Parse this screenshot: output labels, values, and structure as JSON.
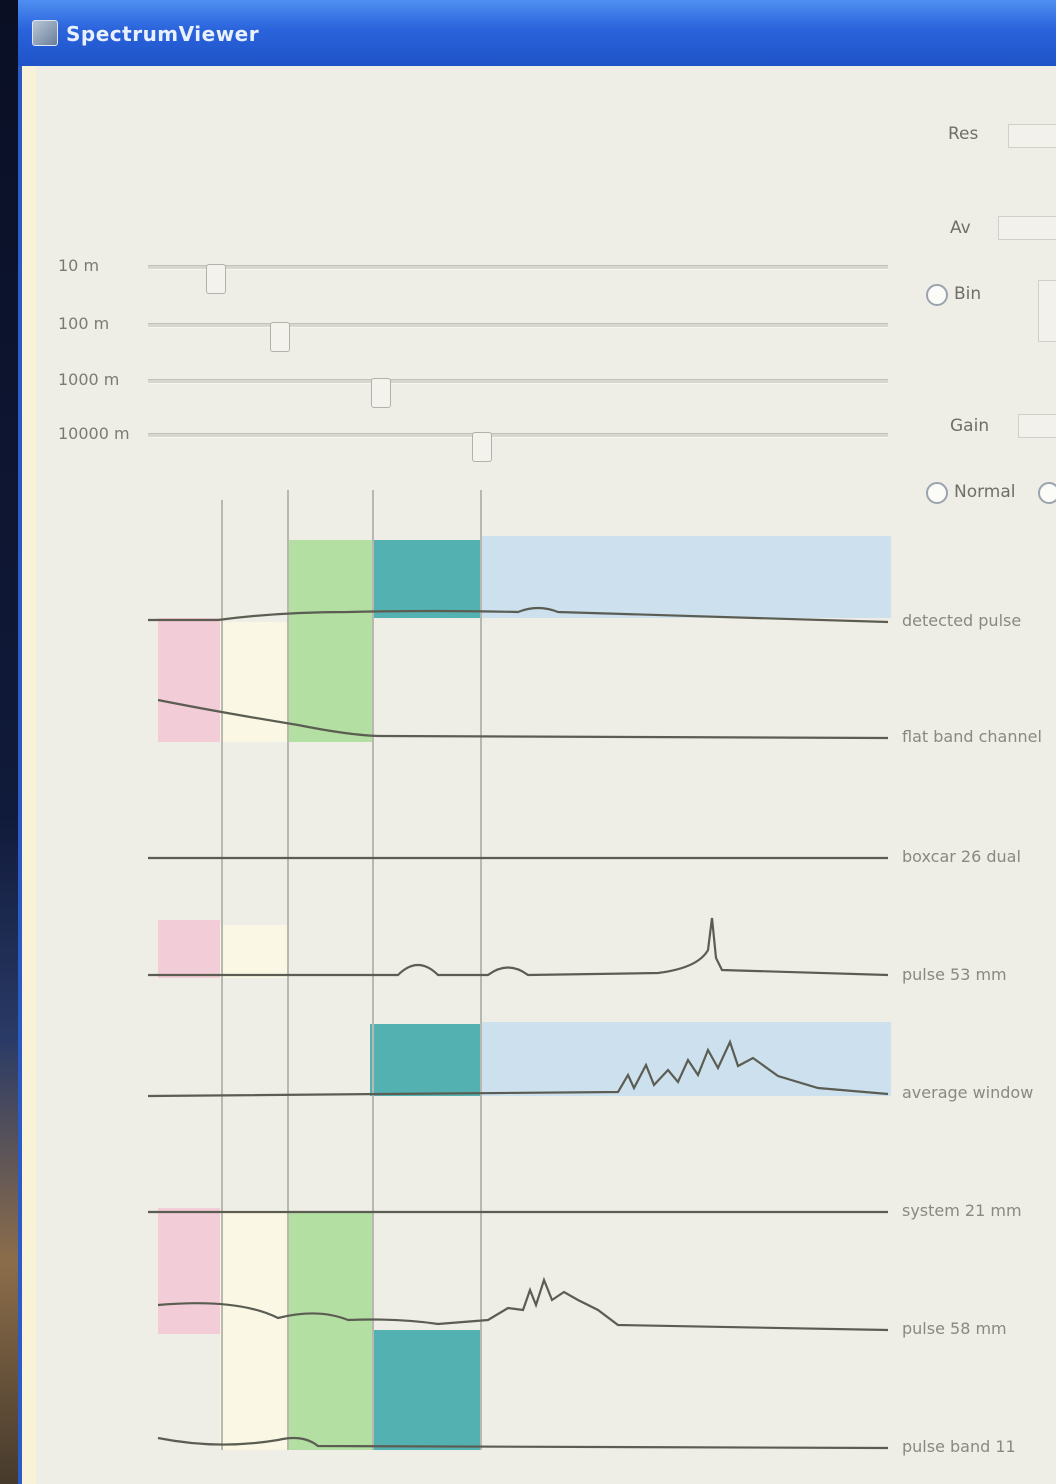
{
  "window": {
    "title": "SpectrumViewer"
  },
  "sliders": [
    {
      "label": "10 m",
      "value": 0.08
    },
    {
      "label": "100 m",
      "value": 0.17
    },
    {
      "label": "1000 m",
      "value": 0.31
    },
    {
      "label": "10000 m",
      "value": 0.45
    }
  ],
  "panel": {
    "field1_label": "Res",
    "field2_label": "Av",
    "radio1_label": "Bin",
    "field3_label": "Gain",
    "radio2_label": "Normal"
  },
  "traces": [
    {
      "label": "detected pulse"
    },
    {
      "label": "flat band channel"
    },
    {
      "label": "boxcar 26 dual"
    },
    {
      "label": "pulse 53 mm"
    },
    {
      "label": "average window"
    },
    {
      "label": "system 21 mm"
    },
    {
      "label": "pulse 58 mm"
    },
    {
      "label": "pulse band 11"
    }
  ],
  "colors": {
    "pink": "#f2c6d4",
    "cream": "#fbf9e4",
    "green": "#a9dc96",
    "teal": "#37a6a8",
    "light_blue": "#c6ddee",
    "title_bar": "#245edb"
  }
}
